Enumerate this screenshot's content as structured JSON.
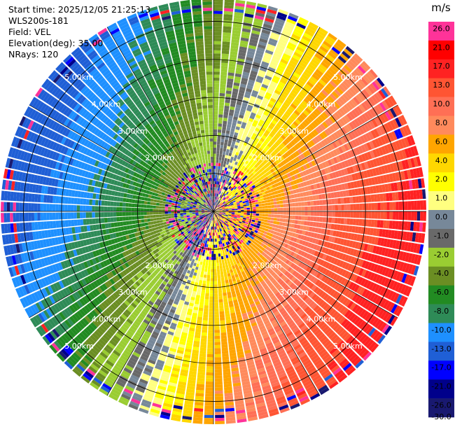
{
  "info": {
    "start_time": "Start time: 2025/12/05 21:25:13",
    "site": "WLS200s-181",
    "field": "Field: VEL",
    "elevation": "Elevation(deg): 35.00",
    "nrays": "NRays: 120"
  },
  "colorbar": {
    "unit": "m/s",
    "ticks": [
      "26.0",
      "21.0",
      "17.0",
      "13.0",
      "10.0",
      "8.0",
      "6.0",
      "4.0",
      "2.0",
      "1.0",
      "0.0",
      "-1.0",
      "-2.0",
      "-4.0",
      "-6.0",
      "-8.0",
      "-10.0",
      "-13.0",
      "-17.0",
      "-21.0",
      "-26.0",
      "-30.0"
    ],
    "colors": [
      "#ff3399",
      "#ff0000",
      "#ff2222",
      "#ff5533",
      "#ff6f55",
      "#ff8a5c",
      "#ffa500",
      "#ffd700",
      "#ffff00",
      "#ffff80",
      "#778899",
      "#696969",
      "#9acd32",
      "#6b8e23",
      "#228b22",
      "#2e8b57",
      "#1e90ff",
      "#1f5fd6",
      "#0000ff",
      "#00008b",
      "#191970"
    ]
  },
  "chart_data": {
    "type": "heatmap",
    "subtype": "radar-ppi",
    "field": "VEL",
    "units": "m/s",
    "nrays": 120,
    "elevation_deg": 35.0,
    "range_km": [
      0,
      5.6
    ],
    "range_ring_labels": [
      "2.00km",
      "3.00km",
      "4.00km",
      "5.00km"
    ],
    "range_ring_label_bearings_deg": [
      45,
      135,
      225,
      315
    ],
    "velocity_pattern": {
      "description": "dipole: positive (receding) toward east/south-east, negative (approaching) toward west/north-west",
      "max_positive_bearing_deg": 110,
      "near_range_noise_km": 1.3
    }
  }
}
